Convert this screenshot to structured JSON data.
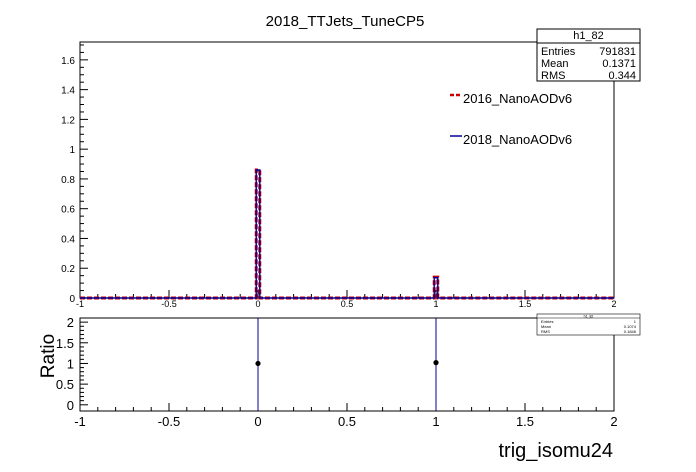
{
  "title": "2018_TTJets_TuneCP5",
  "xlabel": "trig_isomu24",
  "ratio_ylabel": "Ratio",
  "stats_box": {
    "name": "h1_82",
    "rows": [
      {
        "label": "Entries",
        "value": "791831"
      },
      {
        "label": "Mean",
        "value": "0.1371"
      },
      {
        "label": "RMS",
        "value": "0.344"
      }
    ]
  },
  "ratio_stats_box": {
    "name": "h1_82",
    "rows": [
      {
        "label": "Entries",
        "value": "1"
      },
      {
        "label": "Mean",
        "value": "0.1074"
      },
      {
        "label": "RMS",
        "value": "0.1846"
      }
    ]
  },
  "colors": {
    "series_2016": "#cc0000",
    "series_2018": "#000099",
    "axis": "#000000",
    "ratio_points": "#000000"
  },
  "chart_data": [
    {
      "type": "histogram",
      "title": "2018_TTJets_TuneCP5",
      "xlim": [
        -1,
        2
      ],
      "ylim": [
        0,
        1.72
      ],
      "x_ticks": [
        "-1",
        "-0.5",
        "0",
        "0.5",
        "1",
        "1.5",
        "2"
      ],
      "y_ticks": [
        "0",
        "0.2",
        "0.4",
        "0.6",
        "0.8",
        "1",
        "1.2",
        "1.4",
        "1.6"
      ],
      "legend_placement": "right",
      "bin_width": 0.02,
      "series": [
        {
          "name": "2016_NanoAODv6",
          "style": "dashed",
          "bins": [
            {
              "x": 0.0,
              "y": 0.86
            },
            {
              "x": 1.0,
              "y": 0.14
            }
          ]
        },
        {
          "name": "2018_NanoAODv6",
          "style": "solid",
          "bins": [
            {
              "x": 0.0,
              "y": 0.86
            },
            {
              "x": 1.0,
              "y": 0.137
            }
          ]
        }
      ]
    },
    {
      "type": "scatter",
      "xlabel": "trig_isomu24",
      "ylabel": "Ratio",
      "xlim": [
        -1,
        2
      ],
      "ylim": [
        -0.15,
        2.1
      ],
      "x_ticks": [
        "-1",
        "-0.5",
        "0",
        "0.5",
        "1",
        "1.5",
        "2"
      ],
      "y_ticks": [
        "0",
        "0.5",
        "1",
        "1.5",
        "2"
      ],
      "points": [
        {
          "x": 0.0,
          "y": 1.0,
          "err_low": -0.15,
          "err_high": 2.1
        },
        {
          "x": 1.0,
          "y": 1.02,
          "err_low": -0.15,
          "err_high": 2.1
        }
      ]
    }
  ]
}
